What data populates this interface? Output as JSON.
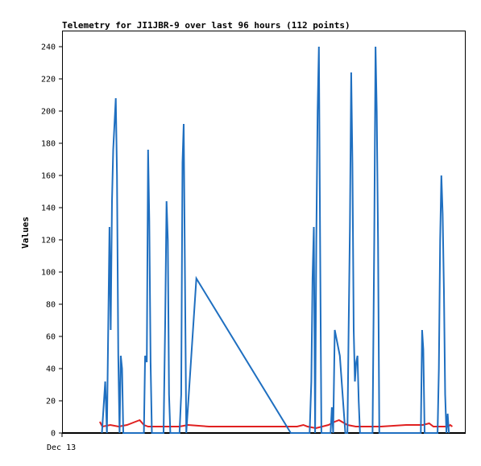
{
  "chart_data": {
    "type": "line",
    "title": "Telemetry for JI1JBR-9 over last 96 hours (112 points)",
    "xlabel": "",
    "ylabel": "Values",
    "x_tick_labels": [
      "Dec 13"
    ],
    "ylim": [
      0,
      250
    ],
    "yticks": [
      0,
      20,
      40,
      60,
      80,
      100,
      120,
      140,
      160,
      180,
      200,
      220,
      240
    ],
    "grid": false,
    "legend": "none",
    "x_unit": "hours",
    "xlim": [
      0,
      96
    ],
    "series": [
      {
        "color": "#1f6fc0",
        "points": [
          [
            9.5,
            0
          ],
          [
            10.3,
            32
          ],
          [
            10.7,
            0
          ],
          [
            11.0,
            64
          ],
          [
            11.3,
            128
          ],
          [
            11.6,
            64
          ],
          [
            11.9,
            144
          ],
          [
            12.2,
            176
          ],
          [
            12.5,
            192
          ],
          [
            12.8,
            208
          ],
          [
            13.1,
            160
          ],
          [
            13.4,
            48
          ],
          [
            13.7,
            0
          ],
          [
            14.0,
            48
          ],
          [
            14.3,
            40
          ],
          [
            14.6,
            0
          ],
          [
            19.5,
            0
          ],
          [
            19.8,
            48
          ],
          [
            20.2,
            44
          ],
          [
            20.5,
            176
          ],
          [
            20.8,
            132
          ],
          [
            21.1,
            44
          ],
          [
            21.4,
            0
          ],
          [
            24.2,
            0
          ],
          [
            24.6,
            72
          ],
          [
            24.9,
            144
          ],
          [
            25.2,
            120
          ],
          [
            25.5,
            24
          ],
          [
            25.8,
            0
          ],
          [
            28.0,
            0
          ],
          [
            28.4,
            24
          ],
          [
            28.7,
            168
          ],
          [
            29.0,
            192
          ],
          [
            29.3,
            96
          ],
          [
            29.6,
            0
          ],
          [
            32.0,
            96
          ],
          [
            54.5,
            0
          ],
          [
            59.0,
            0
          ],
          [
            59.4,
            32
          ],
          [
            59.7,
            96
          ],
          [
            60.0,
            128
          ],
          [
            60.3,
            0
          ],
          [
            60.6,
            120
          ],
          [
            60.9,
            200
          ],
          [
            61.2,
            240
          ],
          [
            61.5,
            120
          ],
          [
            61.8,
            0
          ],
          [
            64.0,
            0
          ],
          [
            64.3,
            16
          ],
          [
            64.6,
            0
          ],
          [
            65.0,
            64
          ],
          [
            66.2,
            48
          ],
          [
            67.5,
            0
          ],
          [
            68.0,
            0
          ],
          [
            68.3,
            64
          ],
          [
            68.6,
            128
          ],
          [
            68.9,
            224
          ],
          [
            69.2,
            168
          ],
          [
            69.5,
            64
          ],
          [
            69.8,
            32
          ],
          [
            70.1,
            44
          ],
          [
            70.4,
            48
          ],
          [
            70.7,
            20
          ],
          [
            71.0,
            0
          ],
          [
            74.0,
            0
          ],
          [
            74.4,
            120
          ],
          [
            74.7,
            240
          ],
          [
            75.0,
            200
          ],
          [
            75.3,
            120
          ],
          [
            75.6,
            0
          ],
          [
            85.5,
            0
          ],
          [
            85.8,
            64
          ],
          [
            86.1,
            52
          ],
          [
            86.4,
            0
          ],
          [
            89.5,
            0
          ],
          [
            89.8,
            40
          ],
          [
            90.1,
            120
          ],
          [
            90.4,
            160
          ],
          [
            90.7,
            136
          ],
          [
            91.0,
            88
          ],
          [
            91.3,
            24
          ],
          [
            91.6,
            0
          ],
          [
            91.9,
            12
          ],
          [
            92.2,
            0
          ]
        ]
      },
      {
        "color": "#e02020",
        "points": [
          [
            9.0,
            7
          ],
          [
            9.6,
            4
          ],
          [
            11.5,
            5
          ],
          [
            13.5,
            4
          ],
          [
            15.5,
            5
          ],
          [
            17.5,
            7
          ],
          [
            18.5,
            8
          ],
          [
            19.5,
            5
          ],
          [
            20.5,
            4
          ],
          [
            28.0,
            4
          ],
          [
            30.0,
            5
          ],
          [
            35.0,
            4
          ],
          [
            50.0,
            4
          ],
          [
            56.0,
            4
          ],
          [
            57.5,
            5
          ],
          [
            58.5,
            4
          ],
          [
            60.5,
            3
          ],
          [
            62.0,
            4
          ],
          [
            63.5,
            5
          ],
          [
            65.0,
            7
          ],
          [
            66.0,
            8
          ],
          [
            68.0,
            5
          ],
          [
            70.0,
            4
          ],
          [
            76.0,
            4
          ],
          [
            82.0,
            5
          ],
          [
            86.0,
            5
          ],
          [
            87.5,
            6
          ],
          [
            88.5,
            4
          ],
          [
            92.0,
            4
          ],
          [
            92.5,
            5
          ],
          [
            93.0,
            4
          ]
        ]
      },
      {
        "color": "#000000",
        "points": [
          [
            0,
            0
          ],
          [
            96,
            0
          ]
        ]
      }
    ]
  }
}
